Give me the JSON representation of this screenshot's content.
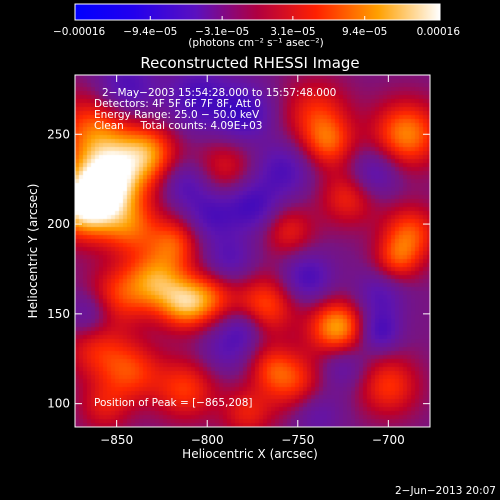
{
  "chart_data": {
    "type": "heatmap",
    "title": "Reconstructed RHESSI Image",
    "xlabel": "Heliocentric X (arcsec)",
    "ylabel": "Heliocentric Y (arcsec)",
    "xlim": [
      -873,
      -677
    ],
    "ylim": [
      87,
      283
    ],
    "xticks": [
      -850,
      -800,
      -750,
      -700
    ],
    "xtick_labels": [
      "−850",
      "−800",
      "−750",
      "−700"
    ],
    "yticks": [
      100,
      150,
      200,
      250
    ],
    "ytick_labels": [
      "100",
      "150",
      "200",
      "250"
    ],
    "colorbar": {
      "min": -0.00016,
      "max": 0.00016,
      "ticks": [
        -0.00016,
        -9.4e-05,
        -3.1e-05,
        3.1e-05,
        9.4e-05,
        0.00016
      ],
      "tick_labels": [
        "−0.00016",
        "−9.4e−05",
        "−3.1e−05",
        "3.1e−05",
        "9.4e−05",
        "0.00016"
      ],
      "unit_label": "(photons cm⁻² s⁻¹ asec⁻²)"
    },
    "annotations": [
      "2−May−2003 15:54:28.000 to 15:57:48.000",
      "Detectors: 4F 5F 6F 7F 8F, Att 0",
      "Energy Range: 25.0 − 50.0 keV",
      "Clean     Total counts: 4.09E+03"
    ],
    "peak_label": "Position of Peak = [−865,208]",
    "peak": [
      -865,
      208
    ],
    "blobs": [
      {
        "x": -867,
        "y": 211,
        "v": 1.0,
        "r": 13
      },
      {
        "x": -852,
        "y": 226,
        "v": 0.82,
        "r": 14
      },
      {
        "x": -862,
        "y": 252,
        "v": 0.55,
        "r": 15
      },
      {
        "x": -832,
        "y": 240,
        "v": 0.55,
        "r": 11
      },
      {
        "x": -842,
        "y": 198,
        "v": 0.45,
        "r": 11
      },
      {
        "x": -818,
        "y": 190,
        "v": 0.45,
        "r": 10
      },
      {
        "x": -828,
        "y": 168,
        "v": 0.65,
        "r": 12
      },
      {
        "x": -812,
        "y": 155,
        "v": 0.6,
        "r": 10
      },
      {
        "x": -850,
        "y": 160,
        "v": 0.4,
        "r": 12
      },
      {
        "x": -862,
        "y": 130,
        "v": 0.35,
        "r": 12
      },
      {
        "x": -842,
        "y": 118,
        "v": 0.45,
        "r": 12
      },
      {
        "x": -812,
        "y": 108,
        "v": 0.45,
        "r": 12
      },
      {
        "x": -790,
        "y": 232,
        "v": 0.3,
        "r": 11
      },
      {
        "x": -798,
        "y": 160,
        "v": 0.4,
        "r": 10
      },
      {
        "x": -768,
        "y": 155,
        "v": 0.5,
        "r": 12
      },
      {
        "x": -755,
        "y": 196,
        "v": 0.35,
        "r": 10
      },
      {
        "x": -740,
        "y": 262,
        "v": 0.4,
        "r": 13
      },
      {
        "x": -733,
        "y": 245,
        "v": 0.45,
        "r": 10
      },
      {
        "x": -722,
        "y": 215,
        "v": 0.4,
        "r": 11
      },
      {
        "x": -728,
        "y": 142,
        "v": 0.75,
        "r": 11
      },
      {
        "x": -690,
        "y": 250,
        "v": 0.65,
        "r": 13
      },
      {
        "x": -688,
        "y": 195,
        "v": 0.5,
        "r": 11
      },
      {
        "x": -695,
        "y": 180,
        "v": 0.4,
        "r": 9
      },
      {
        "x": -752,
        "y": 112,
        "v": 0.45,
        "r": 12
      },
      {
        "x": -700,
        "y": 110,
        "v": 0.45,
        "r": 12
      },
      {
        "x": -778,
        "y": 95,
        "v": 0.35,
        "r": 10
      },
      {
        "x": -765,
        "y": 120,
        "v": 0.3,
        "r": 9
      },
      {
        "x": -857,
        "y": 98,
        "v": 0.3,
        "r": 10
      },
      {
        "x": -805,
        "y": 270,
        "v": -0.4,
        "r": 12
      },
      {
        "x": -780,
        "y": 262,
        "v": -0.45,
        "r": 11
      },
      {
        "x": -758,
        "y": 230,
        "v": -0.35,
        "r": 11
      },
      {
        "x": -775,
        "y": 210,
        "v": -0.4,
        "r": 10
      },
      {
        "x": -798,
        "y": 205,
        "v": -0.35,
        "r": 10
      },
      {
        "x": -812,
        "y": 222,
        "v": -0.3,
        "r": 9
      },
      {
        "x": -845,
        "y": 275,
        "v": -0.4,
        "r": 12
      },
      {
        "x": -708,
        "y": 228,
        "v": -0.35,
        "r": 10
      },
      {
        "x": -705,
        "y": 160,
        "v": -0.3,
        "r": 10
      },
      {
        "x": -745,
        "y": 170,
        "v": -0.4,
        "r": 10
      },
      {
        "x": -788,
        "y": 180,
        "v": -0.3,
        "r": 10
      },
      {
        "x": -790,
        "y": 130,
        "v": -0.25,
        "r": 10
      },
      {
        "x": -780,
        "y": 142,
        "v": -0.3,
        "r": 8
      },
      {
        "x": -865,
        "y": 150,
        "v": -0.3,
        "r": 9
      },
      {
        "x": -725,
        "y": 122,
        "v": -0.3,
        "r": 10
      },
      {
        "x": -740,
        "y": 95,
        "v": -0.25,
        "r": 10
      },
      {
        "x": -705,
        "y": 140,
        "v": -0.4,
        "r": 8
      }
    ]
  },
  "footer": {
    "date": "2−Jun−2013 20:07"
  }
}
